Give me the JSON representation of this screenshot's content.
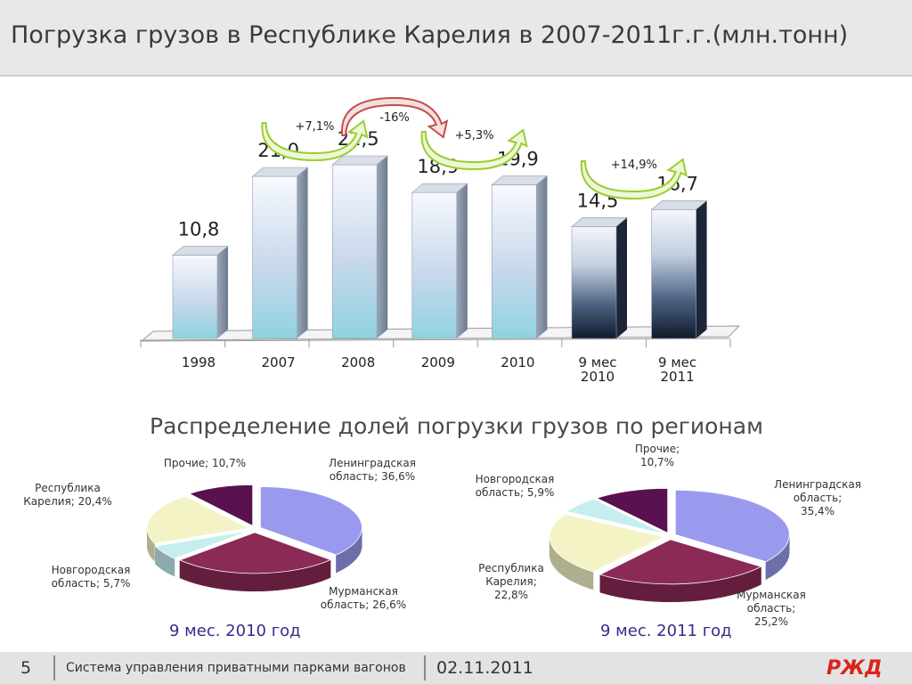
{
  "title": "Погрузка грузов в Республике Карелия в 2007-2011г.г.(млн.тонн)",
  "subtitle": "Распределение долей погрузки грузов по регионам",
  "chart_data": [
    {
      "type": "bar",
      "categories": [
        "1998",
        "2007",
        "2008",
        "2009",
        "2010",
        "9 мес 2010",
        "9 мес 2011"
      ],
      "values": [
        10.8,
        21.0,
        22.5,
        18.9,
        19.9,
        14.5,
        16.7
      ],
      "value_labels": [
        "10,8",
        "21,0",
        "22,5",
        "18,9",
        "19,9",
        "14,5",
        "16,7"
      ],
      "ylim": [
        0,
        30
      ],
      "bar_colors": [
        "#bcd3ec",
        "#bcd3ec",
        "#bcd3ec",
        "#bcd3ec",
        "#bcd3ec",
        "#1a2a40",
        "#1a2a40"
      ],
      "annotations": [
        {
          "label": "+7,1%",
          "from": "2007",
          "to": "2008",
          "color": "#9acd32"
        },
        {
          "label": "-16%",
          "from": "2008",
          "to": "2009",
          "color": "#c0504d"
        },
        {
          "label": "+5,3%",
          "from": "2009",
          "to": "2010",
          "color": "#9acd32"
        },
        {
          "label": "+14,9%",
          "from": "9 мес 2010",
          "to": "9 мес 2011",
          "color": "#9acd32"
        }
      ]
    },
    {
      "type": "pie",
      "period": "9 мес. 2010 год",
      "slices": [
        {
          "name": "Ленинградская область",
          "value": 36.6,
          "label": "Ленинградская\nобласть; 36,6%",
          "color": "#9999ee"
        },
        {
          "name": "Мурманская область",
          "value": 26.6,
          "label": "Мурманская\nобласть; 26,6%",
          "color": "#8b2a55"
        },
        {
          "name": "Новгородская область",
          "value": 5.7,
          "label": "Новгородская\nобласть; 5,7%",
          "color": "#c4eef0"
        },
        {
          "name": "Республика Карелия",
          "value": 20.4,
          "label": "Республика\nКарелия; 20,4%",
          "color": "#f3f3c6"
        },
        {
          "name": "Прочие",
          "value": 10.7,
          "label": "Прочие; 10,7%",
          "color": "#5a1150"
        }
      ]
    },
    {
      "type": "pie",
      "period": "9 мес. 2011 год",
      "slices": [
        {
          "name": "Ленинградская область",
          "value": 35.4,
          "label": "Ленинградская\nобласть;\n35,4%",
          "color": "#9999ee"
        },
        {
          "name": "Мурманская область",
          "value": 25.2,
          "label": "Мурманская\nобласть;\n25,2%",
          "color": "#8b2a55"
        },
        {
          "name": "Республика Карелия",
          "value": 22.8,
          "label": "Республика\nКарелия;\n22,8%",
          "color": "#f3f3c6"
        },
        {
          "name": "Новгородская область",
          "value": 5.9,
          "label": "Новгородская\nобласть; 5,9%",
          "color": "#c4eef0"
        },
        {
          "name": "Прочие",
          "value": 10.7,
          "label": "Прочие;\n10,7%",
          "color": "#5a1150"
        }
      ]
    }
  ],
  "footer": {
    "page_number": "5",
    "text": "Система управления приватными парками вагонов",
    "date": "02.11.2011",
    "logo": "РЖД"
  }
}
